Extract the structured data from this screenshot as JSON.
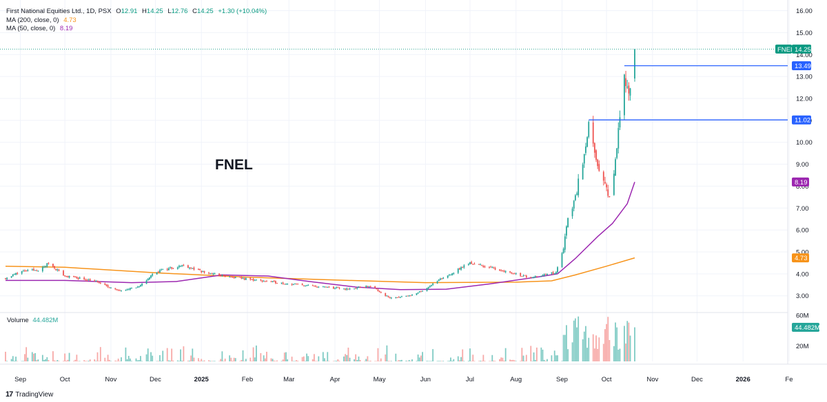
{
  "header": {
    "name": "First National Equities Ltd., 1D, PSX",
    "o_label": "O",
    "o_value": "12.91",
    "h_label": "H",
    "h_value": "14.25",
    "l_label": "L",
    "l_value": "12.76",
    "c_label": "C",
    "c_value": "14.25",
    "change": "+1.30 (+10.04%)",
    "ma200_label": "MA (200, close, 0)",
    "ma200_value": "4.73",
    "ma50_label": "MA (50, close, 0)",
    "ma50_value": "8.19"
  },
  "watermark": "FNEL",
  "volume_legend": {
    "label": "Volume",
    "value": "44.482M"
  },
  "footer": {
    "logo": "17",
    "brand": "TradingView"
  },
  "colors": {
    "up": "#26a69a",
    "down": "#ef5350",
    "ma200": "#f7931a",
    "ma50": "#9c27b0",
    "level": "#2962ff",
    "price": "#089981",
    "vol_up": "#80cbc4",
    "vol_down": "#f7a9a7"
  },
  "chart_data": {
    "type": "candlestick",
    "ylim": [
      2.3,
      16.3
    ],
    "price_ticks": [
      "16.00",
      "15.00",
      "14.00",
      "13.00",
      "12.00",
      "11.00",
      "10.00",
      "9.00",
      "8.00",
      "7.00",
      "6.00",
      "5.00",
      "4.00",
      "3.00"
    ],
    "volume_ticks": [
      "60M",
      "20M"
    ],
    "volume_ylim": [
      0,
      62
    ],
    "x_labels": [
      "Sep",
      "Oct",
      "Nov",
      "Dec",
      "2025",
      "Feb",
      "Mar",
      "Apr",
      "May",
      "Jun",
      "Jul",
      "Aug",
      "Sep",
      "Oct",
      "Nov",
      "Dec",
      "2026",
      "Fe"
    ],
    "date_range": [
      "2024-08-22",
      "2025-10-20"
    ],
    "last_price": {
      "symbol": "FNEL",
      "value": "14.25"
    },
    "horizontal_levels": [
      {
        "value": 13.49,
        "label": "13.49",
        "start_date": "2025-10-13"
      },
      {
        "value": 11.02,
        "label": "11.02",
        "start_date": "2025-09-19"
      }
    ],
    "ma_tags": [
      {
        "value": 8.19,
        "label": "8.19"
      },
      {
        "value": 4.73,
        "label": "4.73"
      }
    ],
    "volume_tag": {
      "value": 44.482,
      "label": "44.482M"
    },
    "segments": [
      {
        "date": "2024-08-22",
        "close": 3.8
      },
      {
        "date": "2024-09-01",
        "close": 4.1
      },
      {
        "date": "2024-09-15",
        "close": 4.2
      },
      {
        "date": "2024-09-20",
        "close": 4.5
      },
      {
        "date": "2024-10-01",
        "close": 3.9
      },
      {
        "date": "2024-10-20",
        "close": 3.7
      },
      {
        "date": "2024-11-05",
        "close": 3.25
      },
      {
        "date": "2024-11-20",
        "close": 3.4
      },
      {
        "date": "2024-12-01",
        "close": 4.1
      },
      {
        "date": "2024-12-20",
        "close": 4.4
      },
      {
        "date": "2025-01-01",
        "close": 4.1
      },
      {
        "date": "2025-01-20",
        "close": 3.85
      },
      {
        "date": "2025-02-15",
        "close": 3.65
      },
      {
        "date": "2025-03-15",
        "close": 3.45
      },
      {
        "date": "2025-04-10",
        "close": 3.3
      },
      {
        "date": "2025-04-25",
        "close": 3.45
      },
      {
        "date": "2025-05-08",
        "close": 2.9
      },
      {
        "date": "2025-05-25",
        "close": 3.05
      },
      {
        "date": "2025-06-10",
        "close": 3.7
      },
      {
        "date": "2025-07-01",
        "close": 4.5
      },
      {
        "date": "2025-07-20",
        "close": 4.2
      },
      {
        "date": "2025-08-10",
        "close": 3.85
      },
      {
        "date": "2025-08-28",
        "close": 4.05
      },
      {
        "date": "2025-09-02",
        "close": 5.2
      },
      {
        "date": "2025-09-05",
        "close": 6.5
      },
      {
        "date": "2025-09-10",
        "close": 7.5
      },
      {
        "date": "2025-09-15",
        "close": 9.2
      },
      {
        "date": "2025-09-19",
        "close": 10.8
      },
      {
        "date": "2025-09-24",
        "close": 9.0
      },
      {
        "date": "2025-09-30",
        "close": 8.0
      },
      {
        "date": "2025-10-03",
        "close": 7.6
      },
      {
        "date": "2025-10-06",
        "close": 8.5
      },
      {
        "date": "2025-10-09",
        "close": 10.5
      },
      {
        "date": "2025-10-13",
        "close": 13.2
      },
      {
        "date": "2025-10-16",
        "close": 12.2
      },
      {
        "date": "2025-10-19",
        "close": 12.9
      },
      {
        "date": "2025-10-20",
        "close": 14.25
      }
    ],
    "ma200": [
      {
        "date": "2024-08-22",
        "value": 4.35
      },
      {
        "date": "2024-10-01",
        "value": 4.3
      },
      {
        "date": "2024-12-01",
        "value": 4.05
      },
      {
        "date": "2025-02-01",
        "value": 3.85
      },
      {
        "date": "2025-04-01",
        "value": 3.72
      },
      {
        "date": "2025-06-01",
        "value": 3.6
      },
      {
        "date": "2025-08-01",
        "value": 3.62
      },
      {
        "date": "2025-08-25",
        "value": 3.68
      },
      {
        "date": "2025-09-10",
        "value": 3.95
      },
      {
        "date": "2025-10-01",
        "value": 4.35
      },
      {
        "date": "2025-10-20",
        "value": 4.73
      }
    ],
    "ma50": [
      {
        "date": "2024-08-22",
        "value": 3.7
      },
      {
        "date": "2024-10-01",
        "value": 3.7
      },
      {
        "date": "2024-11-15",
        "value": 3.6
      },
      {
        "date": "2024-12-15",
        "value": 3.65
      },
      {
        "date": "2025-01-15",
        "value": 3.95
      },
      {
        "date": "2025-02-15",
        "value": 3.9
      },
      {
        "date": "2025-03-15",
        "value": 3.65
      },
      {
        "date": "2025-04-15",
        "value": 3.4
      },
      {
        "date": "2025-05-15",
        "value": 3.28
      },
      {
        "date": "2025-06-15",
        "value": 3.3
      },
      {
        "date": "2025-07-15",
        "value": 3.55
      },
      {
        "date": "2025-08-15",
        "value": 3.85
      },
      {
        "date": "2025-08-29",
        "value": 4.0
      },
      {
        "date": "2025-09-10",
        "value": 4.7
      },
      {
        "date": "2025-09-25",
        "value": 5.7
      },
      {
        "date": "2025-10-05",
        "value": 6.3
      },
      {
        "date": "2025-10-15",
        "value": 7.2
      },
      {
        "date": "2025-10-20",
        "value": 8.19
      }
    ]
  }
}
